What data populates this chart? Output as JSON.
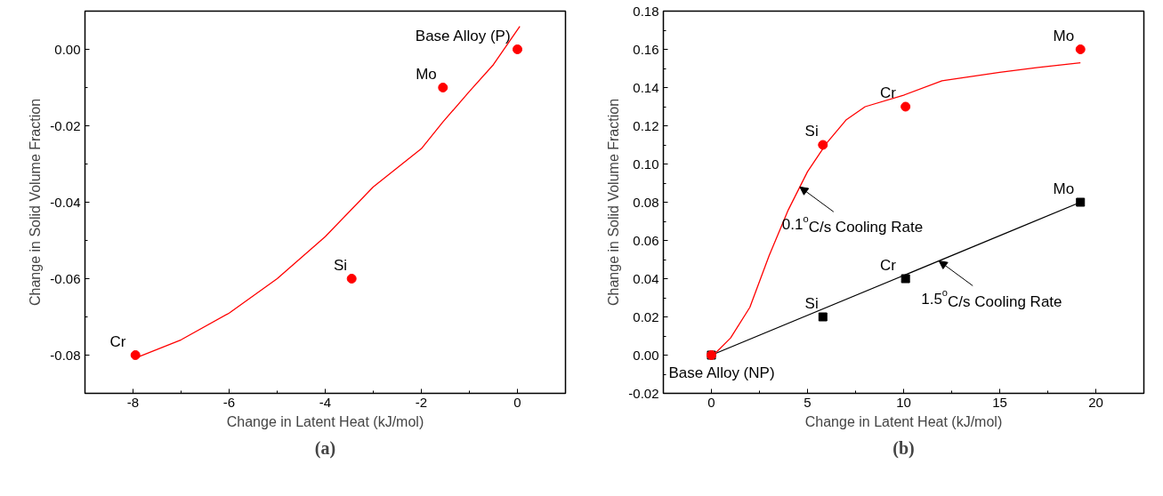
{
  "chart_data": [
    {
      "type": "scatter",
      "title": "(a)",
      "xlabel": "Change in Latent Heat (kJ/mol)",
      "ylabel": "Change in Solid Volume Fraction",
      "xlim": [
        -9,
        1
      ],
      "ylim": [
        -0.09,
        0.01
      ],
      "xticks": [
        -8,
        {
          "value": -7,
          "label": null
        },
        -6,
        {
          "value": -5,
          "label": null
        },
        -4,
        {
          "value": -3,
          "label": null
        },
        -2,
        {
          "value": -1,
          "label": null
        },
        0
      ],
      "yticks": [
        {
          "value": -0.08,
          "label": "-0.08"
        },
        {
          "value": -0.07,
          "label": null
        },
        {
          "value": -0.06,
          "label": "-0.06"
        },
        {
          "value": -0.05,
          "label": null
        },
        {
          "value": -0.04,
          "label": "-0.04"
        },
        {
          "value": -0.03,
          "label": null
        },
        {
          "value": -0.02,
          "label": "-0.02"
        },
        {
          "value": -0.01,
          "label": null
        },
        {
          "value": 0,
          "label": "0.00"
        }
      ],
      "grid": false,
      "series": [
        {
          "type": "line",
          "color": "#ff0000",
          "line_style": "solid",
          "x": [
            -8,
            -7,
            -6,
            -5,
            -4,
            -3,
            -2,
            -1.55,
            -1,
            -0.5,
            0.05
          ],
          "values": [
            -0.081,
            -0.076,
            -0.069,
            -0.06,
            -0.049,
            -0.036,
            -0.026,
            -0.019,
            -0.011,
            -0.004,
            0.006
          ]
        },
        {
          "color": "#ff0000",
          "marker": "circle",
          "x": [
            -7.95,
            -3.45,
            -1.55,
            0
          ],
          "values": [
            -0.08,
            -0.06,
            -0.01,
            0
          ]
        }
      ],
      "annotations": [
        {
          "text": "Base Alloy (P)",
          "x": 0,
          "y": 0
        },
        {
          "text": "Mo",
          "x": -1.55,
          "y": -0.01
        },
        {
          "text": "Si",
          "x": -3.45,
          "y": -0.06
        },
        {
          "text": "Cr",
          "x": -7.95,
          "y": -0.08
        }
      ]
    },
    {
      "type": "scatter",
      "title": "(b)",
      "xlabel": "Change in Latent Heat (kJ/mol)",
      "ylabel": "Change in Solid Volume Fraction",
      "xlim": [
        -2.5,
        22.5
      ],
      "ylim": [
        -0.02,
        0.18
      ],
      "xticks": [
        0,
        {
          "value": 2.5,
          "label": null
        },
        5,
        {
          "value": 7.5,
          "label": null
        },
        10,
        {
          "value": 12.5,
          "label": null
        },
        15,
        {
          "value": 17.5,
          "label": null
        },
        20
      ],
      "yticks": [
        {
          "value": -0.02,
          "label": "-0.02"
        },
        {
          "value": -0.01,
          "label": null
        },
        {
          "value": 0,
          "label": "0.00"
        },
        {
          "value": 0.01,
          "label": null
        },
        {
          "value": 0.02,
          "label": "0.02"
        },
        {
          "value": 0.03,
          "label": null
        },
        {
          "value": 0.04,
          "label": "0.04"
        },
        {
          "value": 0.05,
          "label": null
        },
        {
          "value": 0.06,
          "label": "0.06"
        },
        {
          "value": 0.07,
          "label": null
        },
        {
          "value": 0.08,
          "label": "0.08"
        },
        {
          "value": 0.09,
          "label": null
        },
        {
          "value": 0.1,
          "label": "0.10"
        },
        {
          "value": 0.11,
          "label": null
        },
        {
          "value": 0.12,
          "label": "0.12"
        },
        {
          "value": 0.13,
          "label": null
        },
        {
          "value": 0.14,
          "label": "0.14"
        },
        {
          "value": 0.15,
          "label": null
        },
        {
          "value": 0.16,
          "label": "0.16"
        },
        {
          "value": 0.17,
          "label": null
        },
        {
          "value": 0.18,
          "label": "0.18"
        }
      ],
      "grid": false,
      "series": [
        {
          "type": "line",
          "color": "#000000",
          "line_style": "solid",
          "x": [
            0,
            19.2
          ],
          "values": [
            0,
            0.08
          ]
        },
        {
          "color": "#000000",
          "marker": "square",
          "x": [
            0,
            5.8,
            10.1,
            19.2
          ],
          "values": [
            0,
            0.02,
            0.04,
            0.08
          ]
        },
        {
          "type": "line",
          "color": "#ff0000",
          "line_style": "solid",
          "x": [
            0,
            0.3,
            1,
            2,
            3,
            4,
            5,
            6,
            7,
            8,
            10,
            12,
            15,
            17,
            19.2
          ],
          "values": [
            0,
            0.002,
            0.009,
            0.025,
            0.052,
            0.076,
            0.096,
            0.111,
            0.123,
            0.13,
            0.136,
            0.1435,
            0.148,
            0.1505,
            0.153
          ]
        },
        {
          "color": "#ff0000",
          "marker": "circle",
          "x": [
            0,
            5.8,
            10.1,
            19.2
          ],
          "values": [
            0,
            0.11,
            0.13,
            0.16
          ]
        }
      ],
      "annotations": [
        {
          "text": "Mo",
          "x": 19.2,
          "y": 0.16
        },
        {
          "text": "Cr",
          "x": 10.1,
          "y": 0.13
        },
        {
          "text": "Si",
          "x": 5.8,
          "y": 0.11
        },
        {
          "text": "Mo",
          "x": 19.2,
          "y": 0.08
        },
        {
          "text": "Cr",
          "x": 10.1,
          "y": 0.04
        },
        {
          "text": "Si",
          "x": 5.8,
          "y": 0.02
        },
        {
          "text": "Base Alloy (NP)",
          "x": 0,
          "y": 0
        },
        {
          "text": "0.1$^{o}$C/s Cooling Rate",
          "x": 4.6,
          "y": 0.088
        },
        {
          "text": "1.5$^{o}$C/s Cooling Rate",
          "x": 11.84,
          "y": 0.0493
        }
      ]
    }
  ]
}
